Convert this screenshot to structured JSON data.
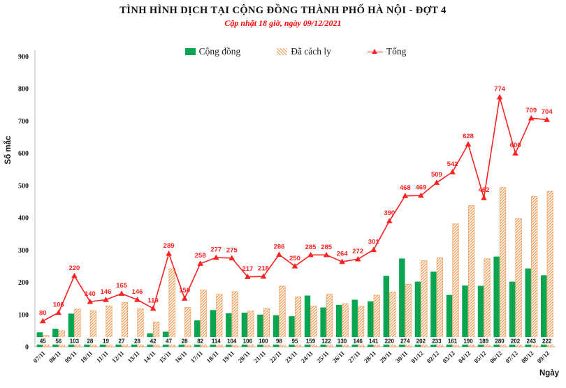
{
  "header": {
    "title": "TÌNH HÌNH DỊCH TẠI CỘNG ĐỒNG THÀNH PHỐ HÀ NỘI - ĐỢT 4",
    "subtitle": "Cập nhật 18 giờ, ngày 09/12/2021",
    "subtitle_color": "#ff0000"
  },
  "legend": [
    {
      "label": "Cộng đồng",
      "swatch": "green-bar-swatch",
      "color": "#0aa551"
    },
    {
      "label": "Đã cách ly",
      "swatch": "hatched-bar-swatch",
      "color": "#f29b54"
    },
    {
      "label": "Tổng",
      "swatch": "line-marker-swatch",
      "color": "#fb2222"
    }
  ],
  "axes": {
    "y_label": "Số mắc",
    "x_label": "Ngày"
  },
  "chart_data": {
    "type": "combo",
    "title": "TÌNH HÌNH DỊCH TẠI CỘNG ĐỒNG THÀNH PHỐ HÀ NỘI - ĐỢT 4",
    "subtitle": "Cập nhật 18 giờ, ngày 09/12/2021",
    "categories": [
      "07/11",
      "08/11",
      "09/11",
      "10/11",
      "11/11",
      "12/11",
      "13/11",
      "14/11",
      "15/11",
      "16/11",
      "17/11",
      "18/11",
      "19/11",
      "20/11",
      "21/11",
      "22/11",
      "23/11",
      "24/11",
      "25/11",
      "26/11",
      "27/11",
      "28/11",
      "29/11",
      "30/11",
      "01/12",
      "02/12",
      "03/12",
      "04/12",
      "05/12",
      "06/12",
      "07/12",
      "08/12",
      "09/12"
    ],
    "series": [
      {
        "name": "Cộng đồng",
        "type": "bar",
        "color": "#0aa551",
        "label_position": "inside-base",
        "values": [
          45,
          56,
          103,
          28,
          19,
          27,
          28,
          42,
          47,
          28,
          82,
          114,
          104,
          106,
          100,
          98,
          95,
          159,
          122,
          130,
          146,
          141,
          220,
          274,
          202,
          233,
          161,
          190,
          189,
          280,
          202,
          243,
          222
        ]
      },
      {
        "name": "Đã cách ly",
        "type": "bar",
        "style": "diagonal-hatch",
        "color": "#f29b54",
        "label_position": "none",
        "values": [
          35,
          50,
          117,
          112,
          127,
          138,
          118,
          77,
          242,
          122,
          176,
          163,
          171,
          111,
          118,
          188,
          155,
          126,
          163,
          134,
          126,
          160,
          170,
          194,
          267,
          276,
          381,
          438,
          273,
          494,
          398,
          466,
          482
        ]
      },
      {
        "name": "Tổng",
        "type": "line",
        "marker": "triangle",
        "color": "#fb2222",
        "label_position": "above",
        "values": [
          80,
          106,
          220,
          140,
          146,
          165,
          146,
          119,
          289,
          150,
          258,
          277,
          275,
          217,
          218,
          286,
          250,
          285,
          285,
          264,
          272,
          301,
          390,
          468,
          469,
          509,
          542,
          628,
          462,
          774,
          600,
          709,
          704
        ]
      }
    ],
    "xlabel": "Ngày",
    "ylabel": "Số mắc",
    "ylim": [
      0,
      900
    ],
    "y_ticks": [
      0,
      100,
      200,
      300,
      400,
      500,
      600,
      700,
      800,
      900
    ],
    "x_tick_rotation": -45,
    "grid": false,
    "legend_position": "top"
  }
}
